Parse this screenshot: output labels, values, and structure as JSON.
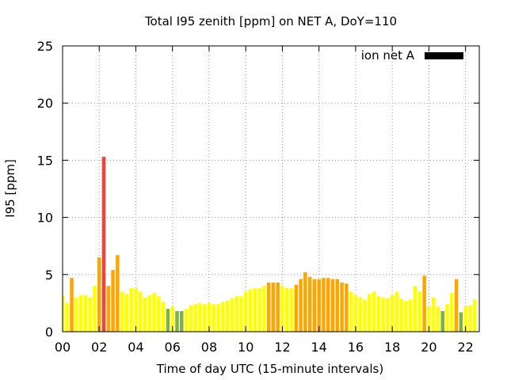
{
  "chart_data": {
    "type": "bar",
    "title": "Total I95 zenith [ppm] on NET A, DoY=110",
    "xlabel": "Time of day UTC (15-minute intervals)",
    "ylabel": "I95 [ppm]",
    "xlim": [
      0,
      22.75
    ],
    "ylim": [
      0,
      25
    ],
    "x_ticks": [
      "00",
      "02",
      "04",
      "06",
      "08",
      "10",
      "12",
      "14",
      "16",
      "18",
      "20",
      "22"
    ],
    "y_ticks": [
      "0",
      "5",
      "10",
      "15",
      "20",
      "25"
    ],
    "grid": true,
    "legend_position": "top-right",
    "legend": [
      {
        "name": "ion net A",
        "color": "#000000"
      }
    ],
    "bar_colors": {
      "green": "#7cb342",
      "yellow": "#ffff00",
      "orange": "#ffa500",
      "red": "#f44336"
    },
    "series": [
      {
        "name": "ion net A",
        "interval_hours": 0.25,
        "values": [
          3.2,
          2.5,
          4.7,
          3.0,
          3.2,
          3.2,
          3.0,
          4.0,
          6.5,
          15.3,
          4.0,
          5.4,
          6.7,
          3.5,
          3.3,
          3.8,
          3.8,
          3.5,
          3.0,
          3.2,
          3.4,
          3.1,
          2.6,
          2.0,
          2.2,
          1.8,
          1.8,
          2.0,
          2.3,
          2.4,
          2.5,
          2.4,
          2.5,
          2.4,
          2.4,
          2.6,
          2.7,
          2.9,
          3.1,
          3.1,
          3.5,
          3.7,
          3.8,
          3.8,
          4.0,
          4.3,
          4.3,
          4.3,
          4.0,
          3.8,
          3.8,
          4.1,
          4.6,
          5.2,
          4.8,
          4.6,
          4.6,
          4.7,
          4.7,
          4.6,
          4.6,
          4.3,
          4.2,
          3.5,
          3.2,
          3.0,
          2.8,
          3.3,
          3.5,
          3.1,
          3.0,
          2.9,
          3.2,
          3.5,
          2.9,
          2.7,
          2.8,
          4.0,
          3.5,
          4.9,
          2.2,
          3.0,
          2.2,
          1.8,
          2.4,
          3.4,
          4.6,
          1.7,
          2.2,
          2.3,
          2.8
        ],
        "levels": [
          "yellow",
          "yellow",
          "orange",
          "yellow",
          "yellow",
          "yellow",
          "yellow",
          "yellow",
          "orange",
          "red",
          "orange",
          "orange",
          "orange",
          "yellow",
          "yellow",
          "yellow",
          "yellow",
          "yellow",
          "yellow",
          "yellow",
          "yellow",
          "yellow",
          "yellow",
          "green",
          "yellow",
          "green",
          "green",
          "yellow",
          "yellow",
          "yellow",
          "yellow",
          "yellow",
          "yellow",
          "yellow",
          "yellow",
          "yellow",
          "yellow",
          "yellow",
          "yellow",
          "yellow",
          "yellow",
          "yellow",
          "yellow",
          "yellow",
          "yellow",
          "orange",
          "orange",
          "orange",
          "yellow",
          "yellow",
          "yellow",
          "orange",
          "orange",
          "orange",
          "orange",
          "orange",
          "orange",
          "orange",
          "orange",
          "orange",
          "orange",
          "orange",
          "orange",
          "yellow",
          "yellow",
          "yellow",
          "yellow",
          "yellow",
          "yellow",
          "yellow",
          "yellow",
          "yellow",
          "yellow",
          "yellow",
          "yellow",
          "yellow",
          "yellow",
          "yellow",
          "yellow",
          "orange",
          "yellow",
          "yellow",
          "yellow",
          "green",
          "yellow",
          "yellow",
          "orange",
          "green",
          "yellow",
          "yellow",
          "yellow"
        ]
      }
    ]
  }
}
